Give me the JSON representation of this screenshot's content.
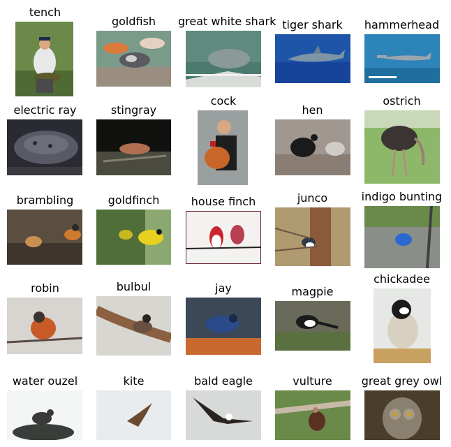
{
  "images": [
    {
      "label": "tench"
    },
    {
      "label": "goldfish"
    },
    {
      "label": "great white shark"
    },
    {
      "label": "tiger shark"
    },
    {
      "label": "hammerhead"
    },
    {
      "label": "electric ray"
    },
    {
      "label": "stingray"
    },
    {
      "label": "cock"
    },
    {
      "label": "hen"
    },
    {
      "label": "ostrich"
    },
    {
      "label": "brambling"
    },
    {
      "label": "goldfinch"
    },
    {
      "label": "house finch"
    },
    {
      "label": "junco"
    },
    {
      "label": "indigo bunting"
    },
    {
      "label": "robin"
    },
    {
      "label": "bulbul"
    },
    {
      "label": "jay"
    },
    {
      "label": "magpie"
    },
    {
      "label": "chickadee"
    },
    {
      "label": "water ouzel"
    },
    {
      "label": "kite"
    },
    {
      "label": "bald eagle"
    },
    {
      "label": "vulture"
    },
    {
      "label": "great grey owl"
    }
  ]
}
